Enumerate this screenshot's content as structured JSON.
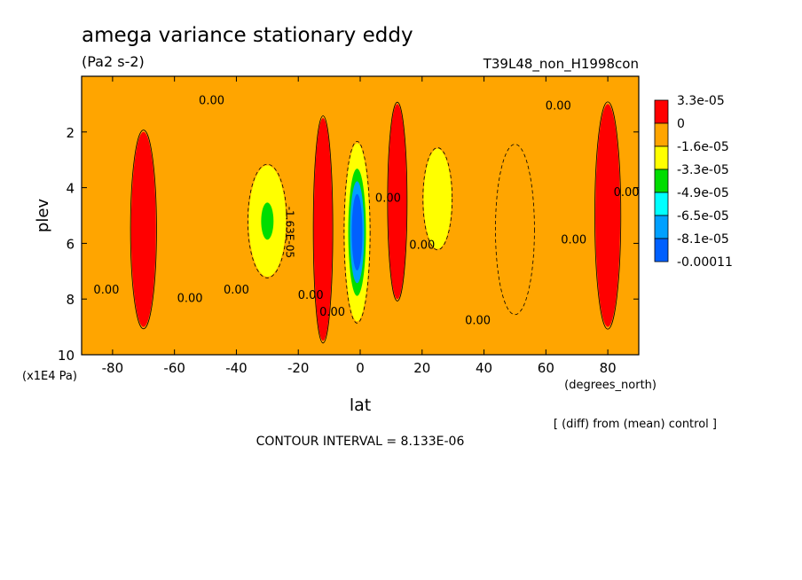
{
  "chart_data": {
    "type": "heatmap",
    "title": "amega variance stationary eddy",
    "units": "(Pa2 s-2)",
    "experiment": "T39L48_non_H1998con",
    "xlabel": "lat",
    "xunits": "(degrees_north)",
    "ylabel": "plev",
    "yunits": "(x1E4 Pa)",
    "note": "[ (diff) from (mean) control ]",
    "contour_interval": "CONTOUR INTERVAL = 8.133E-06",
    "xlim": [
      -90,
      90
    ],
    "ylim": [
      10,
      0
    ],
    "x_ticks": [
      -80,
      -60,
      -40,
      -20,
      0,
      20,
      40,
      60,
      80
    ],
    "y_ticks": [
      2,
      4,
      6,
      8,
      10
    ],
    "contour_label": "0.00",
    "negative_contour_label": "-1.63E-05",
    "colorbar": [
      {
        "label": "3.3e-05",
        "color": "#ff0000",
        "min": 0.0,
        "max": 3.3e-05
      },
      {
        "label": "0",
        "color": "#ffa500",
        "min": -1.6e-05,
        "max": 0.0
      },
      {
        "label": "-1.6e-05",
        "color": "#ffff00",
        "min": -3.3e-05,
        "max": -1.6e-05
      },
      {
        "label": "-3.3e-05",
        "color": "#00dd00",
        "min": -4.9e-05,
        "max": -3.3e-05
      },
      {
        "label": "-4.9e-05",
        "color": "#00ffff",
        "min": -6.5e-05,
        "max": -4.9e-05
      },
      {
        "label": "-6.5e-05",
        "color": "#00a0ff",
        "min": -8.1e-05,
        "max": -6.5e-05
      },
      {
        "label": "-8.1e-05",
        "color": "#0060ff",
        "min": -0.00011,
        "max": -8.1e-05
      },
      {
        "label": "-0.00011",
        "color": null,
        "min": null,
        "max": null
      }
    ],
    "features": [
      {
        "lat": -30,
        "plev": 5.2,
        "minimum": -3.5e-05,
        "width_lat": 12,
        "height_plev": 4.0
      },
      {
        "lat": -1,
        "plev": 5.6,
        "minimum": -0.0001,
        "width_lat": 8,
        "height_plev": 6.4
      },
      {
        "lat": 25,
        "plev": 4.4,
        "minimum": -1.8e-05,
        "width_lat": 9,
        "height_plev": 3.6
      },
      {
        "lat": 50,
        "plev": 5.5,
        "minimum": -8e-06,
        "width_lat": 12,
        "height_plev": 6.0
      },
      {
        "lat": 80,
        "plev": 5.0,
        "maximum": 2e-05,
        "width_lat": 8,
        "height_plev": 8.0
      },
      {
        "lat": -70,
        "plev": 5.5,
        "maximum": 2e-05,
        "width_lat": 8,
        "height_plev": 7.0
      },
      {
        "lat": -12,
        "plev": 5.5,
        "maximum": 2e-05,
        "width_lat": 6,
        "height_plev": 8.0
      },
      {
        "lat": 12,
        "plev": 4.5,
        "maximum": 2e-05,
        "width_lat": 6,
        "height_plev": 7.0
      }
    ]
  }
}
